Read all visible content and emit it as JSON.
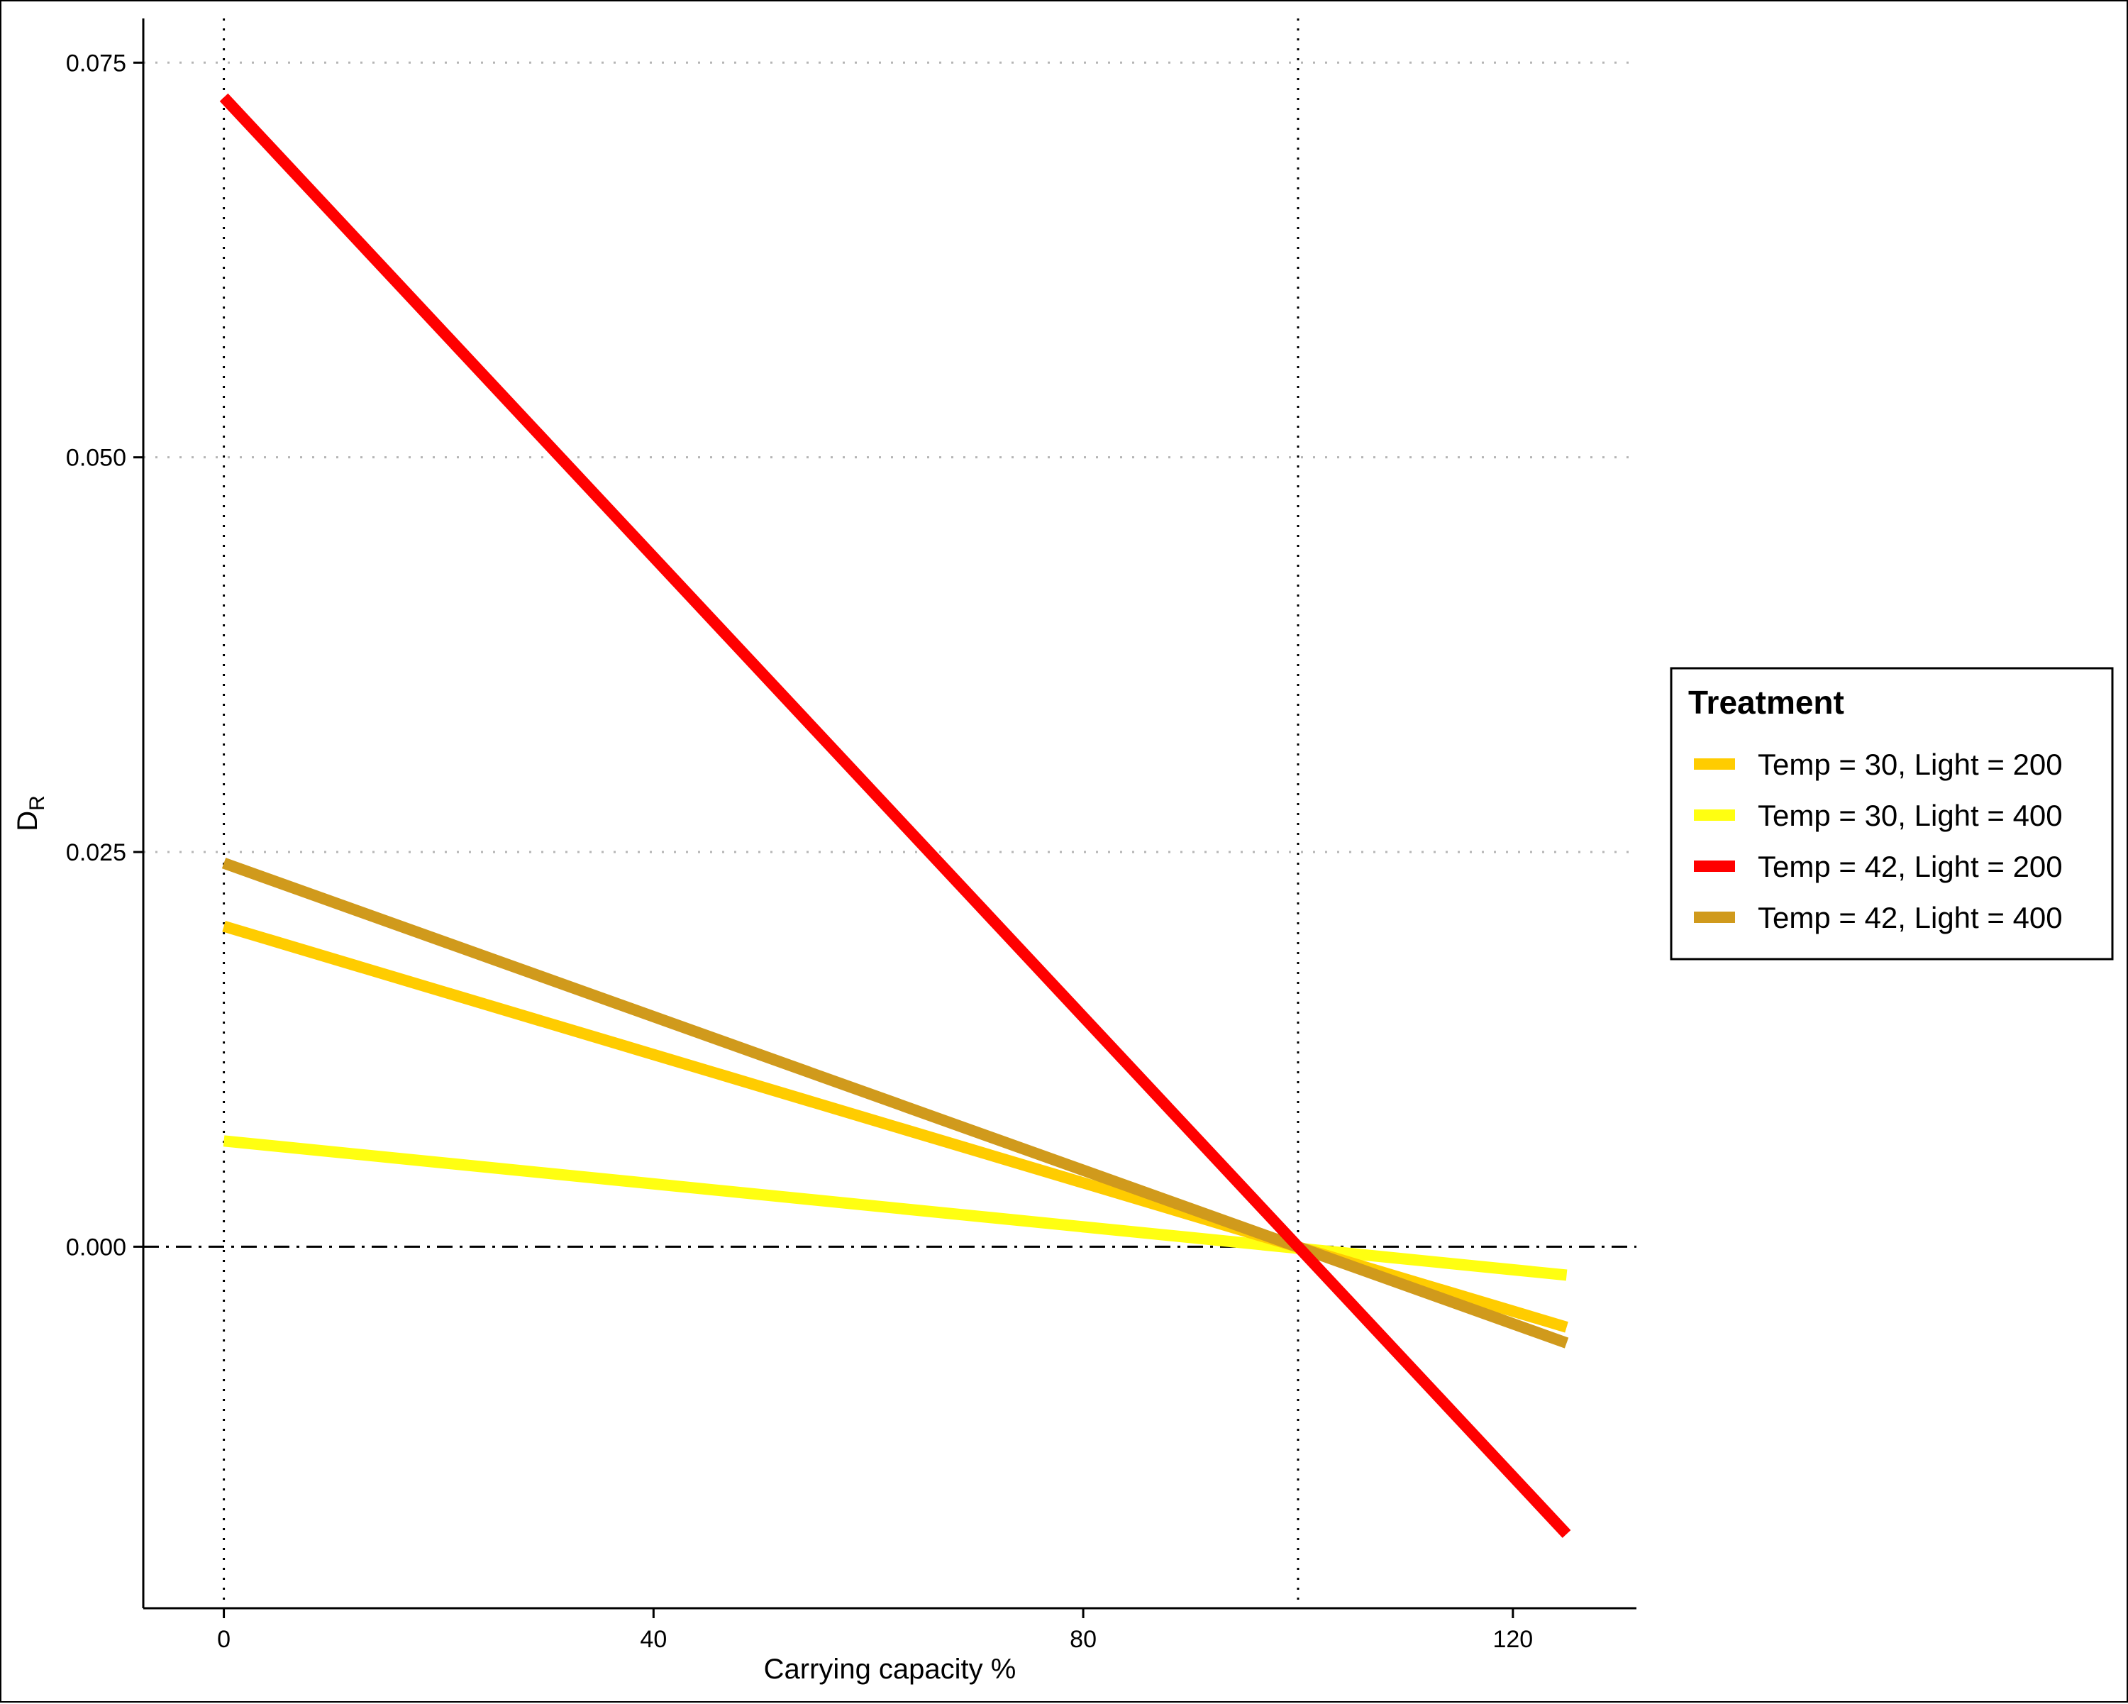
{
  "chart_data": {
    "type": "line",
    "xlabel": "Carrying capacity %",
    "ylabel_main": "D",
    "ylabel_sub": "R",
    "xlim": [
      -7.5,
      131.5
    ],
    "ylim": [
      -0.0229,
      0.0778
    ],
    "x_ticks": [
      0,
      40,
      80,
      120
    ],
    "x_tick_labels": [
      "0",
      "40",
      "80",
      "120"
    ],
    "y_ticks": [
      0.0,
      0.025,
      0.05,
      0.075
    ],
    "y_tick_labels": [
      "0.000",
      "0.025",
      "0.050",
      "0.075"
    ],
    "y_gridlines": [
      0.025,
      0.05,
      0.075
    ],
    "reference_lines": {
      "vertical_dotted": [
        0,
        100
      ],
      "horizontal_dashdot": [
        0
      ]
    },
    "legend": {
      "title": "Treatment",
      "position": "right"
    },
    "series": [
      {
        "name": "Temp = 30, Light = 200",
        "color": "#FFCC00",
        "x": [
          0,
          125
        ],
        "y": [
          0.0203,
          -0.0051
        ]
      },
      {
        "name": "Temp = 30, Light = 400",
        "color": "#FFFF11",
        "x": [
          0,
          125
        ],
        "y": [
          0.0067,
          -0.0018
        ]
      },
      {
        "name": "Temp = 42, Light = 200",
        "color": "#FF0000",
        "x": [
          0,
          125
        ],
        "y": [
          0.0728,
          -0.0182
        ]
      },
      {
        "name": "Temp = 42, Light = 400",
        "color": "#D09A1C",
        "x": [
          0,
          125
        ],
        "y": [
          0.0243,
          -0.0061
        ]
      }
    ]
  }
}
